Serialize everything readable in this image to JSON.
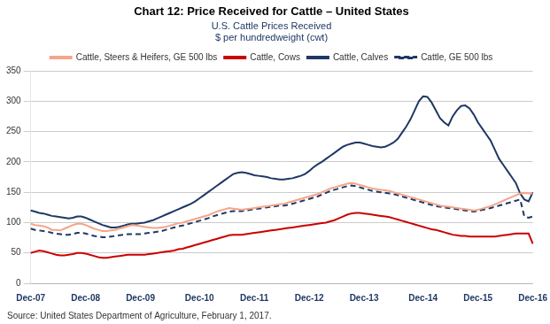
{
  "chart_data": {
    "type": "line",
    "title": "Chart 12: Price Received for Cattle – United States",
    "subtitle": [
      "U.S. Cattle Prices Received",
      "$ per hundredweight (cwt)"
    ],
    "annotations": [
      "Source: United States Department of Agriculture, February 1, 2017."
    ],
    "categories": [
      "Dec-07",
      null,
      null,
      null,
      null,
      null,
      null,
      null,
      null,
      null,
      null,
      null,
      null,
      "Dec-08",
      null,
      null,
      null,
      null,
      null,
      null,
      null,
      null,
      null,
      null,
      null,
      null,
      "Dec-09",
      null,
      null,
      null,
      null,
      null,
      null,
      null,
      null,
      null,
      null,
      null,
      null,
      null,
      "Dec-10",
      null,
      null,
      null,
      null,
      null,
      null,
      null,
      null,
      null,
      null,
      null,
      null,
      "Dec-11",
      null,
      null,
      null,
      null,
      null,
      null,
      null,
      null,
      null,
      null,
      null,
      null,
      "Dec-12",
      null,
      null,
      null,
      null,
      null,
      null,
      null,
      null,
      null,
      null,
      null,
      null,
      "Dec-13",
      null,
      null,
      null,
      null,
      null,
      null,
      null,
      null,
      null,
      null,
      null,
      null,
      null,
      "Dec-14",
      null,
      null,
      null,
      null,
      null,
      null,
      null,
      null,
      null,
      null,
      null,
      null,
      "Dec-15",
      null,
      null,
      null,
      null,
      null,
      null,
      null,
      null,
      null,
      null,
      null,
      null,
      "Dec-16"
    ],
    "series": [
      {
        "name": "Cattle, Steers & Heifers, GE 500 lbs",
        "color": "#F4A58A",
        "line_style": "solid",
        "values": [
          98,
          96,
          95,
          94,
          92,
          88,
          88,
          87,
          90,
          93,
          96,
          98,
          98,
          96,
          93,
          90,
          88,
          86,
          86,
          87,
          88,
          90,
          92,
          94,
          96,
          95,
          94,
          93,
          92,
          91,
          91,
          92,
          93,
          95,
          97,
          99,
          100,
          102,
          104,
          106,
          108,
          110,
          112,
          115,
          118,
          120,
          122,
          124,
          123,
          122,
          121,
          122,
          123,
          124,
          125,
          126,
          127,
          128,
          129,
          130,
          131,
          133,
          135,
          137,
          139,
          141,
          143,
          145,
          147,
          150,
          153,
          156,
          158,
          160,
          162,
          164,
          165,
          164,
          162,
          160,
          158,
          156,
          155,
          154,
          153,
          152,
          150,
          148,
          146,
          144,
          142,
          140,
          138,
          136,
          134,
          132,
          130,
          128,
          127,
          126,
          125,
          124,
          123,
          122,
          121,
          120,
          121,
          123,
          125,
          127,
          130,
          133,
          136,
          139,
          142,
          145,
          148,
          149,
          148,
          148
        ]
      },
      {
        "name": "Cattle, Cows",
        "color": "#CC0000",
        "line_style": "solid",
        "values": [
          50,
          52,
          54,
          53,
          51,
          49,
          47,
          46,
          46,
          47,
          48,
          50,
          50,
          49,
          47,
          45,
          43,
          42,
          42,
          43,
          44,
          45,
          46,
          47,
          47,
          47,
          47,
          47,
          48,
          49,
          50,
          51,
          52,
          53,
          54,
          56,
          57,
          59,
          61,
          63,
          65,
          67,
          69,
          71,
          73,
          75,
          77,
          79,
          80,
          80,
          80,
          81,
          82,
          83,
          84,
          85,
          86,
          87,
          88,
          89,
          90,
          91,
          92,
          93,
          94,
          95,
          96,
          97,
          98,
          99,
          100,
          102,
          104,
          107,
          110,
          113,
          115,
          116,
          116,
          115,
          114,
          113,
          112,
          111,
          110,
          109,
          107,
          105,
          103,
          101,
          99,
          97,
          95,
          93,
          91,
          89,
          88,
          86,
          84,
          82,
          80,
          79,
          78,
          78,
          77,
          77,
          77,
          77,
          77,
          77,
          77,
          78,
          79,
          80,
          81,
          82,
          82,
          82,
          82,
          65
        ]
      },
      {
        "name": "Cattle, Calves",
        "color": "#1F3864",
        "line_style": "solid",
        "values": [
          120,
          118,
          116,
          115,
          113,
          111,
          110,
          109,
          108,
          107,
          108,
          110,
          110,
          108,
          105,
          102,
          99,
          96,
          94,
          92,
          92,
          93,
          95,
          97,
          98,
          98,
          99,
          100,
          102,
          104,
          107,
          110,
          113,
          116,
          119,
          122,
          125,
          128,
          131,
          135,
          140,
          145,
          150,
          155,
          160,
          165,
          170,
          175,
          180,
          182,
          183,
          182,
          180,
          178,
          177,
          176,
          175,
          173,
          172,
          171,
          171,
          172,
          173,
          175,
          177,
          180,
          185,
          191,
          196,
          200,
          205,
          210,
          215,
          220,
          225,
          228,
          230,
          232,
          232,
          230,
          228,
          226,
          225,
          224,
          225,
          228,
          232,
          238,
          248,
          258,
          270,
          285,
          300,
          308,
          307,
          298,
          285,
          272,
          265,
          260,
          275,
          285,
          292,
          293,
          288,
          278,
          265,
          255,
          245,
          235,
          220,
          205,
          195,
          185,
          175,
          165,
          148,
          138,
          135,
          150
        ]
      },
      {
        "name": "Cattle, GE 500 lbs",
        "color": "#1F3864",
        "line_style": "dashed",
        "values": [
          90,
          88,
          87,
          86,
          85,
          83,
          82,
          81,
          80,
          80,
          81,
          83,
          83,
          82,
          80,
          78,
          77,
          76,
          76,
          77,
          78,
          79,
          80,
          81,
          81,
          81,
          81,
          82,
          83,
          84,
          85,
          86,
          88,
          90,
          92,
          94,
          95,
          97,
          99,
          101,
          103,
          105,
          107,
          110,
          112,
          114,
          116,
          118,
          119,
          119,
          119,
          120,
          121,
          122,
          123,
          124,
          125,
          126,
          127,
          128,
          128,
          129,
          131,
          133,
          135,
          137,
          139,
          141,
          143,
          146,
          149,
          152,
          154,
          156,
          158,
          160,
          161,
          160,
          158,
          156,
          154,
          152,
          151,
          150,
          149,
          148,
          147,
          145,
          143,
          141,
          139,
          137,
          135,
          133,
          131,
          129,
          127,
          126,
          125,
          124,
          123,
          122,
          121,
          120,
          119,
          118,
          119,
          121,
          122,
          124,
          126,
          128,
          130,
          132,
          134,
          136,
          138,
          110,
          108,
          110
        ]
      }
    ],
    "ylim": [
      0,
      350
    ],
    "yticks": [
      0,
      50,
      100,
      150,
      200,
      250,
      300,
      350
    ],
    "grid": true,
    "legend": "top",
    "marker": "none"
  }
}
